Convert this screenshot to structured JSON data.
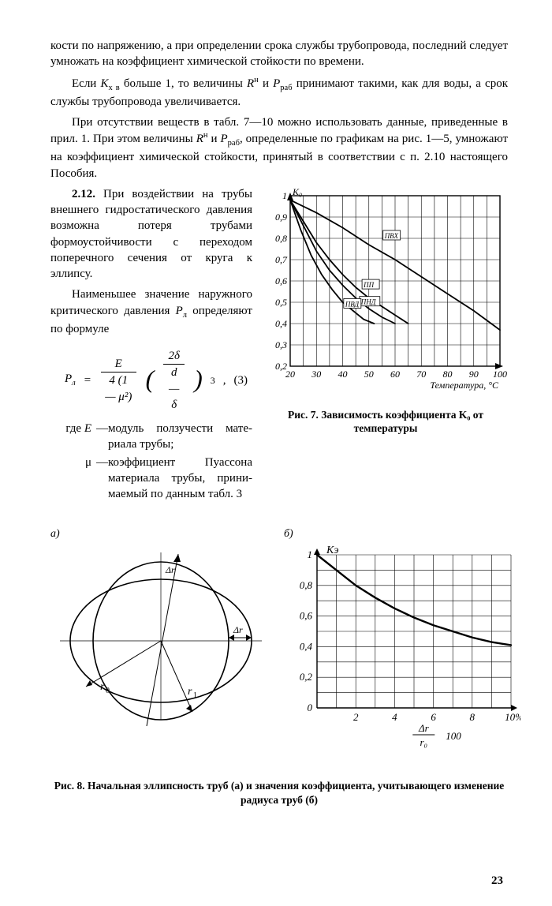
{
  "paragraphs": {
    "p1": "кости по напряжению, а при определении срока службы трубопро­вода, последний следует умножать на коэффициент химической стойкости по времени.",
    "p2_pre": "Если ",
    "p2_kxv": "K",
    "p2_kxv_sub": "х в",
    "p2_mid": " больше 1, то величины ",
    "p2_rn": "R",
    "p2_rn_sup": "н",
    "p2_and": " и ",
    "p2_prab": "P",
    "p2_prab_sub": "раб",
    "p2_end": " принимают такими, как для воды, а срок службы трубопровода увеличивается.",
    "p3_pre": "При отсутствии веществ в табл. 7—10 можно использовать данные, приведенные в прил. 1. При этом величины ",
    "p3_end": ", оп­ределенные по графикам на рис. 1—5, умножают на коэффициент химической стойкости, принятый в соответствии с п. 2.10 настояще­го Пособия.",
    "p4_num": "2.12.",
    "p4_body": " При воздействии на трубы внешнего гидростатического давления возможна потеря труба­ми формоустойчивости с переходом поперечного сечения от круга к эллипсу.",
    "p5_pre": "Наименьшее значение наруж­ного критического давления ",
    "p5_pl": "P",
    "p5_pl_sub": "л",
    "p5_end": " определяют по формуле",
    "p6": "где ",
    "d1_term": "E",
    "d1_body": "модуль ползучести мате­риала трубы;",
    "d2_term": "μ",
    "d2_body": "коэффициент Пуассона материала трубы, прини­маемый по данным табл. 3"
  },
  "formula": {
    "lhs_sym": "P",
    "lhs_sub": "л",
    "eq": "=",
    "f1_num": "E",
    "f1_den": "4 (1 — μ²)",
    "f2_num": "2δ",
    "f2_den": "d — δ",
    "pow": "3",
    "eq_no": "(3)"
  },
  "fig7": {
    "caption": "Рис. 7. Зависимость коэффициента K₀ от температуры",
    "y_label": "K₀",
    "x_label": "Температура, °С",
    "x_ticks": [
      "20",
      "30",
      "40",
      "50",
      "60",
      "70",
      "80",
      "90",
      "100"
    ],
    "y_ticks": [
      "0,2",
      "0,3",
      "0,4",
      "0,5",
      "0,6",
      "0,7",
      "0,8",
      "0,9",
      "1"
    ],
    "curves": {
      "pvh": {
        "label": "ПВХ",
        "pts": [
          [
            20,
            0.98
          ],
          [
            30,
            0.92
          ],
          [
            40,
            0.85
          ],
          [
            50,
            0.77
          ],
          [
            60,
            0.7
          ],
          [
            70,
            0.62
          ],
          [
            80,
            0.54
          ],
          [
            90,
            0.46
          ],
          [
            100,
            0.37
          ]
        ]
      },
      "pp": {
        "label": "ПП",
        "pts": [
          [
            20,
            0.98
          ],
          [
            25,
            0.88
          ],
          [
            30,
            0.78
          ],
          [
            35,
            0.7
          ],
          [
            40,
            0.63
          ],
          [
            45,
            0.57
          ],
          [
            50,
            0.52
          ],
          [
            55,
            0.48
          ],
          [
            60,
            0.44
          ],
          [
            65,
            0.4
          ]
        ]
      },
      "pnd": {
        "label": "ПНД",
        "pts": [
          [
            20,
            0.98
          ],
          [
            25,
            0.86
          ],
          [
            30,
            0.74
          ],
          [
            35,
            0.65
          ],
          [
            40,
            0.58
          ],
          [
            45,
            0.52
          ],
          [
            50,
            0.47
          ],
          [
            55,
            0.43
          ],
          [
            60,
            0.4
          ]
        ]
      },
      "pvd": {
        "label": "ПВД",
        "pts": [
          [
            20,
            0.98
          ],
          [
            24,
            0.84
          ],
          [
            28,
            0.72
          ],
          [
            32,
            0.63
          ],
          [
            36,
            0.56
          ],
          [
            40,
            0.5
          ],
          [
            44,
            0.46
          ],
          [
            48,
            0.42
          ],
          [
            52,
            0.4
          ]
        ]
      }
    },
    "label_pos": {
      "pvh": [
        56,
        0.8
      ],
      "pp": [
        48,
        0.57
      ],
      "pnd": [
        47,
        0.49
      ],
      "pvd": [
        41,
        0.48
      ]
    },
    "colors": {
      "grid": "#000",
      "axis": "#000",
      "curve": "#000",
      "text": "#000",
      "bg": "#fff"
    },
    "stroke": {
      "grid": 0.6,
      "axis": 1.4,
      "curve": 1.8
    },
    "xlim": [
      20,
      100
    ],
    "ylim": [
      0.2,
      1.0
    ]
  },
  "fig8": {
    "caption": "Рис. 8. Начальная эллипсность труб (а) и значения коэффициента, учиты­вающего изменение радиуса труб (б)",
    "a_label": "а)",
    "b_label": "б)",
    "a": {
      "r0": "r₀",
      "r1": "r₁",
      "dr": "Δr"
    },
    "b": {
      "y_label": "Kэ",
      "x_label_top": "Δr",
      "x_label_bot": "r₀",
      "x_label_suffix": " 100",
      "x_pct": "10%",
      "x_ticks": [
        "0",
        "2",
        "4",
        "6",
        "8",
        "10"
      ],
      "y_ticks": [
        "0",
        "0,2",
        "0,4",
        "0,6",
        "0,8",
        "1"
      ],
      "curve": [
        [
          0,
          1.0
        ],
        [
          1,
          0.9
        ],
        [
          2,
          0.8
        ],
        [
          3,
          0.72
        ],
        [
          4,
          0.65
        ],
        [
          5,
          0.59
        ],
        [
          6,
          0.54
        ],
        [
          7,
          0.5
        ],
        [
          8,
          0.46
        ],
        [
          9,
          0.43
        ],
        [
          10,
          0.41
        ]
      ],
      "xlim": [
        0,
        10
      ],
      "ylim": [
        0,
        1.0
      ],
      "stroke": {
        "grid": 0.6,
        "axis": 1.4,
        "curve": 2.4
      }
    }
  },
  "page_number": "23"
}
